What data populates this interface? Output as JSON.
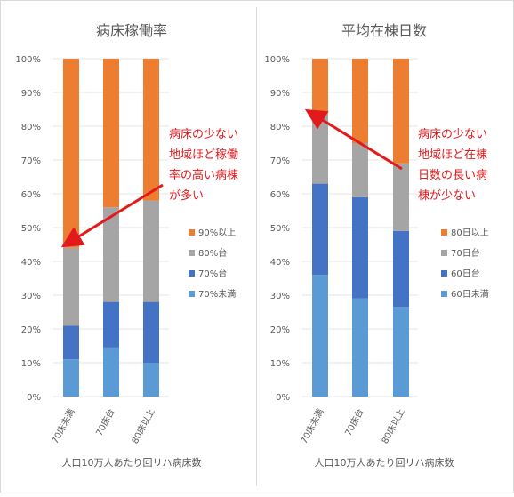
{
  "chart_data": [
    {
      "type": "bar",
      "stacked": true,
      "title": "病床稼働率",
      "xlabel": "人口10万人あたり回リハ病床数",
      "categories": [
        "70床未満",
        "70床台",
        "80床以上"
      ],
      "ylim": [
        0,
        100
      ],
      "yticks": [
        "0%",
        "10%",
        "20%",
        "30%",
        "40%",
        "50%",
        "60%",
        "70%",
        "80%",
        "90%",
        "100%"
      ],
      "legend_position": "right",
      "series": [
        {
          "name": " 70%未満",
          "color": "#5b9bd5",
          "values": [
            11,
            14.5,
            10
          ]
        },
        {
          "name": "70%台",
          "color": "#4472c4",
          "values": [
            10,
            13.5,
            18
          ]
        },
        {
          "name": "80%台",
          "color": "#a5a5a5",
          "values": [
            23,
            28,
            30
          ]
        },
        {
          "name": "90%以上",
          "color": "#ed7d31",
          "values": [
            56,
            44,
            42
          ]
        }
      ],
      "annotation": {
        "lines": [
          "病床の少ない",
          "地域ほど稼働",
          "率の高い病棟",
          "が多い"
        ],
        "color": "#e31a1c"
      }
    },
    {
      "type": "bar",
      "stacked": true,
      "title": "平均在棟日数",
      "xlabel": "人口10万人あたり回リハ病床数",
      "categories": [
        "70床未満",
        "70床台",
        "80床以上"
      ],
      "ylim": [
        0,
        100
      ],
      "yticks": [
        "0%",
        "10%",
        "20%",
        "30%",
        "40%",
        "50%",
        "60%",
        "70%",
        "80%",
        "90%",
        "100%"
      ],
      "legend_position": "right",
      "series": [
        {
          "name": "60日未満",
          "color": "#5b9bd5",
          "values": [
            36,
            29,
            26.5
          ]
        },
        {
          "name": "60日台",
          "color": "#4472c4",
          "values": [
            27,
            30,
            22.5
          ]
        },
        {
          "name": "70日台",
          "color": "#a5a5a5",
          "values": [
            21,
            16,
            20
          ]
        },
        {
          "name": "80日以上",
          "color": "#ed7d31",
          "values": [
            16,
            25,
            31
          ]
        }
      ],
      "annotation": {
        "lines": [
          "病床の少ない",
          "地域ほど在棟",
          "日数の長い病",
          "棟が少ない"
        ],
        "color": "#e31a1c"
      }
    }
  ]
}
